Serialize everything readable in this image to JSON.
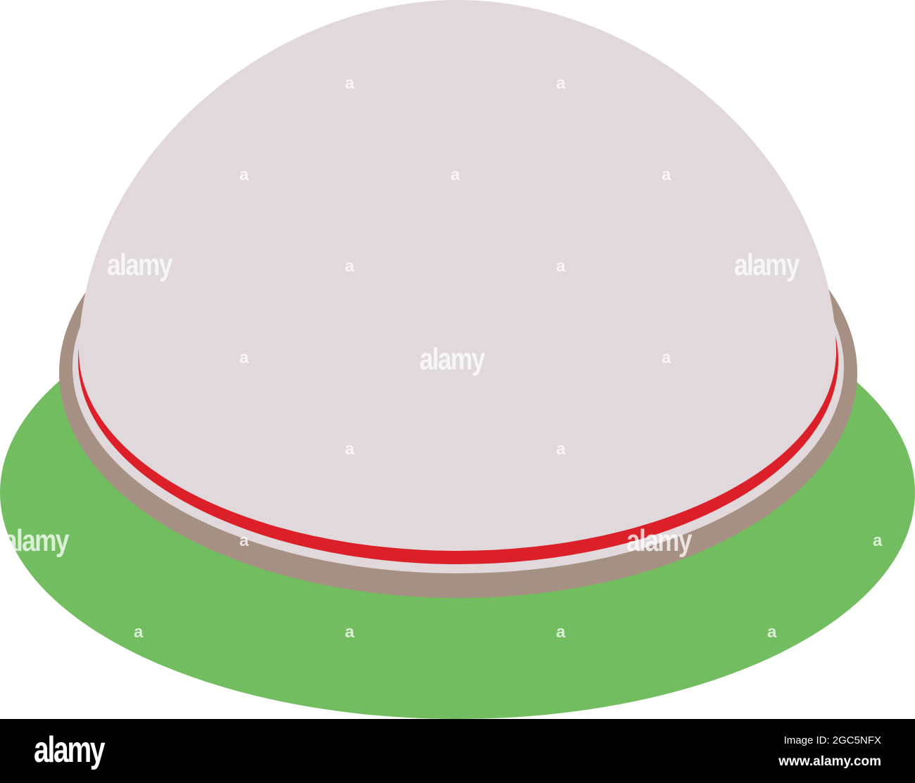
{
  "illustration": {
    "subject": "dome hat",
    "colors": {
      "dome": "#e0d8da",
      "band_red": "#db2029",
      "brim_brown": "#a69083",
      "ground_green": "#72bd60",
      "separator_white": "#e0d8da"
    }
  },
  "watermark": {
    "text": "alamy",
    "mark": "a"
  },
  "footer": {
    "logo": "alamy",
    "image_id": "Image ID: 2GC5NFX",
    "url": "www.alamy.com"
  }
}
